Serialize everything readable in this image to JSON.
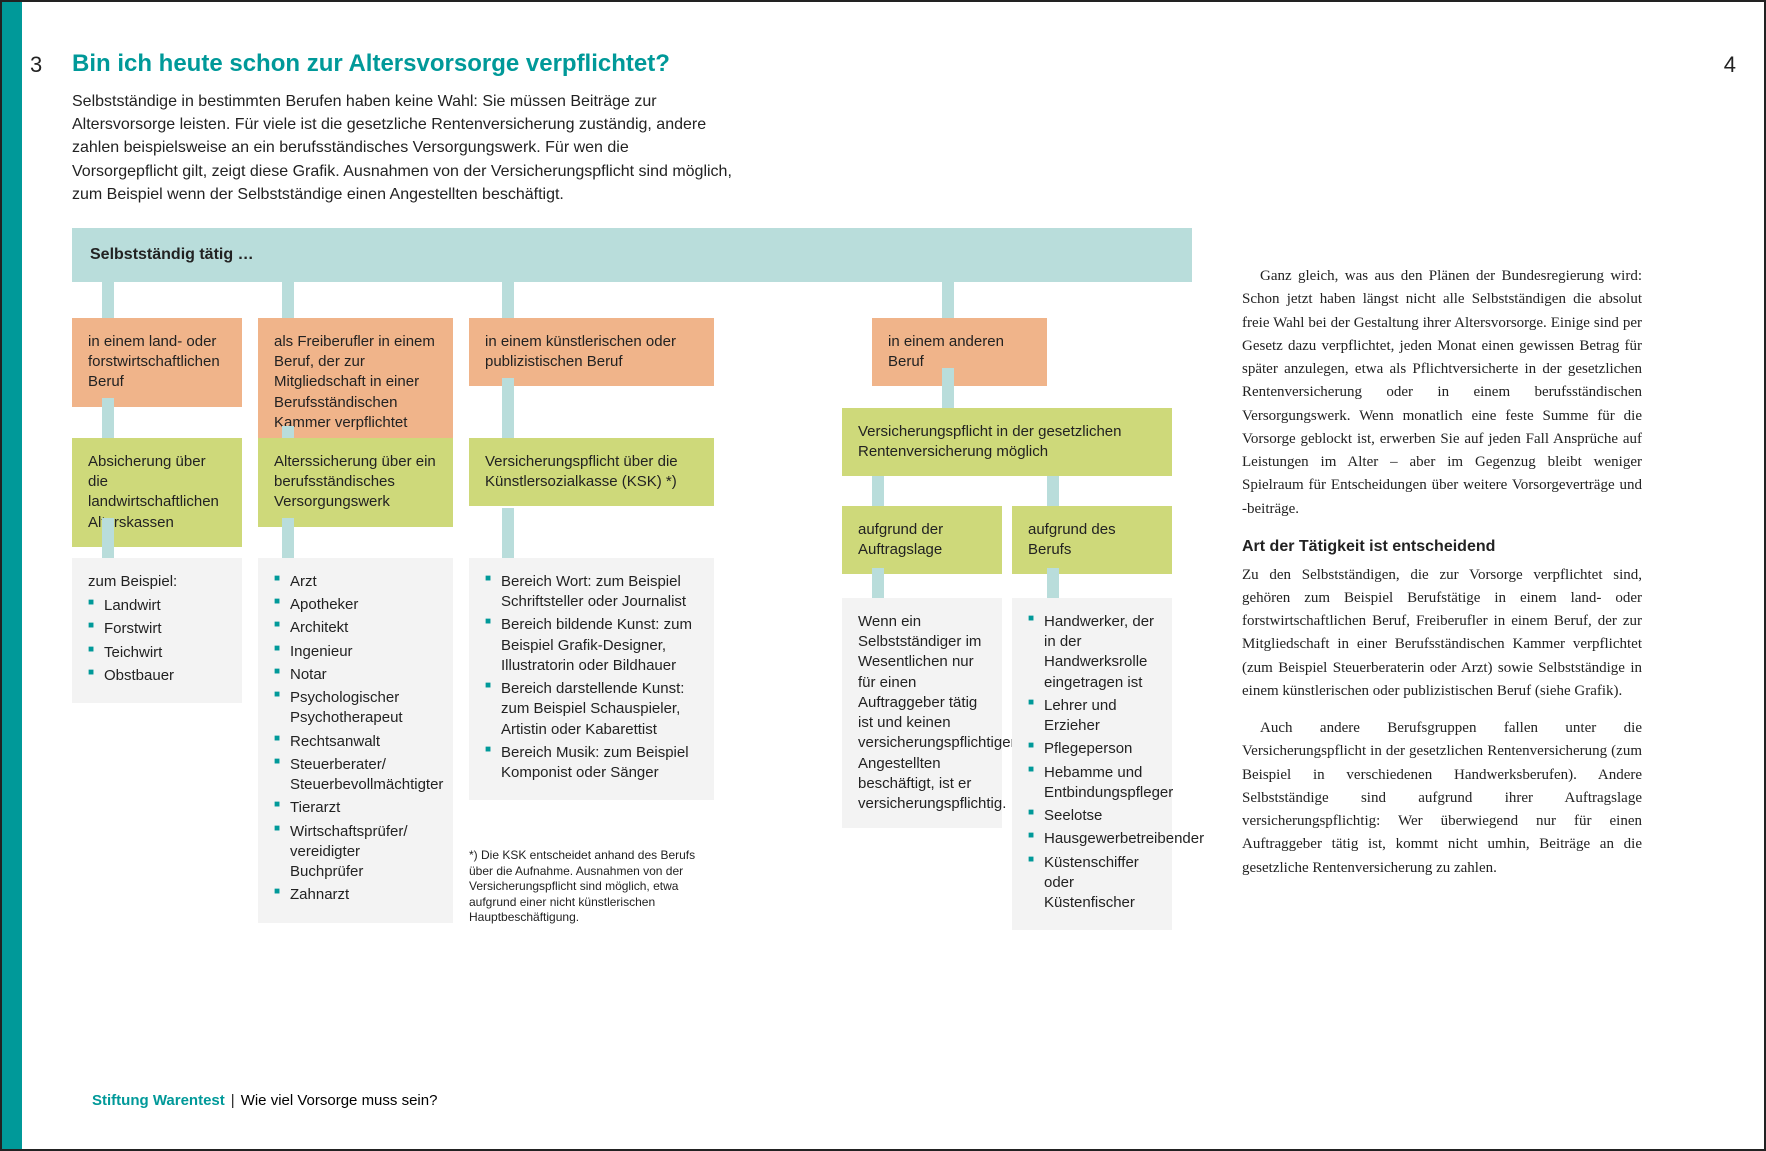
{
  "page": {
    "left_num": "3",
    "right_num": "4"
  },
  "header": {
    "title": "Bin ich heute schon zur Altersvorsorge verpflichtet?",
    "intro": "Selbstständige in bestimmten Berufen haben keine Wahl: Sie müssen Beiträge zur Altersvorsorge leisten. Für viele ist die gesetzliche Rentenversicherung zuständig, andere zahlen beispielsweise an ein berufsständisches Versorgungswerk. Für wen die Vorsorgepflicht gilt, zeigt diese Grafik. Ausnahmen von der Versicherungspflicht sind möglich, zum Beispiel wenn der Selbstständige einen Angestellten beschäftigt."
  },
  "flowchart": {
    "type": "flowchart",
    "colors": {
      "header_bg": "#b9dddb",
      "orange_bg": "#f0b48a",
      "green_bg": "#ced97a",
      "grey_bg": "#f3f3f3",
      "connector": "#b9dddb",
      "bullet": "#009999",
      "text": "#222222"
    },
    "header": "Selbstständig tätig …",
    "col1": {
      "orange": "in einem land- oder forstwirtschaftlichen Beruf",
      "green": "Absicherung über die landwirtschaftlichen Alterskassen",
      "grey_intro": "zum Beispiel:",
      "grey_items": [
        "Landwirt",
        "Forstwirt",
        "Teichwirt",
        "Obstbauer"
      ]
    },
    "col2": {
      "orange": "als Freiberufler in einem Beruf, der zur Mitgliedschaft in einer Berufsständischen Kammer verpflichtet",
      "green": "Alterssicherung über ein berufsständisches Versorgungswerk",
      "grey_items": [
        "Arzt",
        "Apotheker",
        "Architekt",
        "Ingenieur",
        "Notar",
        "Psychologischer Psychotherapeut",
        "Rechtsanwalt",
        "Steuerberater/ Steuerbevollmächtigter",
        "Tierarzt",
        "Wirtschaftsprüfer/ vereidigter Buchprüfer",
        "Zahnarzt"
      ]
    },
    "col3": {
      "orange": "in einem künstlerischen oder publizistischen Beruf",
      "green": "Versicherungspflicht über die Künstlersozialkasse (KSK) *)",
      "grey_items": [
        "Bereich Wort: zum Beispiel Schriftsteller oder Journalist",
        "Bereich bildende Kunst: zum Beispiel Grafik-Designer, Illustratorin oder Bildhauer",
        "Bereich darstellende Kunst: zum Beispiel Schauspieler, Artistin oder Kabarettist",
        "Bereich Musik: zum Beispiel Komponist oder Sänger"
      ]
    },
    "col4": {
      "orange": "in einem anderen Beruf",
      "green_wide": "Versicherungspflicht in der gesetzlichen Rentenversicherung möglich",
      "sub": {
        "green_a": "aufgrund der Auftragslage",
        "green_b": "aufgrund des Berufs",
        "grey_a_text": "Wenn ein Selbstständiger im Wesentlichen nur für einen Auftraggeber tätig ist und keinen versicherungspflichtigen Angestellten beschäftigt, ist er versicherungspflichtig.",
        "grey_b_items": [
          "Handwerker, der in der Handwerksrolle eingetragen ist",
          "Lehrer und Erzieher",
          "Pflegeperson",
          "Hebamme und Entbindungspfleger",
          "Seelotse",
          "Hausgewerbetreibender",
          "Küstenschiffer oder Küstenfischer"
        ]
      }
    },
    "footnote": "*) Die KSK entscheidet anhand des Berufs über die Aufnahme. Ausnahmen von der Versicherungspflicht sind möglich, etwa aufgrund einer nicht künstlerischen Hauptbeschäftigung."
  },
  "footer": {
    "brand": "Stiftung Warentest",
    "title": "Wie viel Vorsorge muss sein?"
  },
  "right": {
    "p1": "Ganz gleich, was aus den Plänen der Bundesregierung wird: Schon jetzt haben längst nicht alle Selbstständigen die absolut freie Wahl bei der Gestaltung ihrer Altersvorsorge. Einige sind per Gesetz dazu verpflichtet, jeden Monat einen gewissen Betrag für später anzulegen, etwa als Pflichtversicherte in der gesetzlichen Rentenversicherung oder in einem berufsständischen Versorgungswerk. Wenn monatlich eine feste Summe für die Vorsorge geblockt ist, erwerben Sie auf jeden Fall Ansprüche auf Leistungen im Alter – aber im Gegenzug bleibt weniger Spielraum für Entscheidungen über weitere Vorsorgeverträge und -beiträge.",
    "h": "Art der Tätigkeit ist entscheidend",
    "p2": "Zu den Selbstständigen, die zur Vorsorge verpflichtet sind, gehören zum Beispiel Berufstätige in einem land- oder forstwirtschaftlichen Beruf, Freiberufler in einem Beruf, der zur Mitgliedschaft in einer Berufsständischen Kammer verpflichtet (zum Beispiel Steuerberaterin oder Arzt) sowie Selbstständige in einem künstlerischen oder publizistischen Beruf (siehe Grafik).",
    "p3": "Auch andere Berufsgruppen fallen unter die Versicherungspflicht in der gesetzlichen Rentenversicherung (zum Beispiel in verschiedenen Handwerksberufen). Andere Selbstständige sind aufgrund ihrer Auftragslage versicherungspflichtig: Wer überwiegend nur für einen Auftraggeber tätig ist, kommt nicht umhin, Beiträge an die gesetzliche Rentenversicherung zu zahlen."
  }
}
